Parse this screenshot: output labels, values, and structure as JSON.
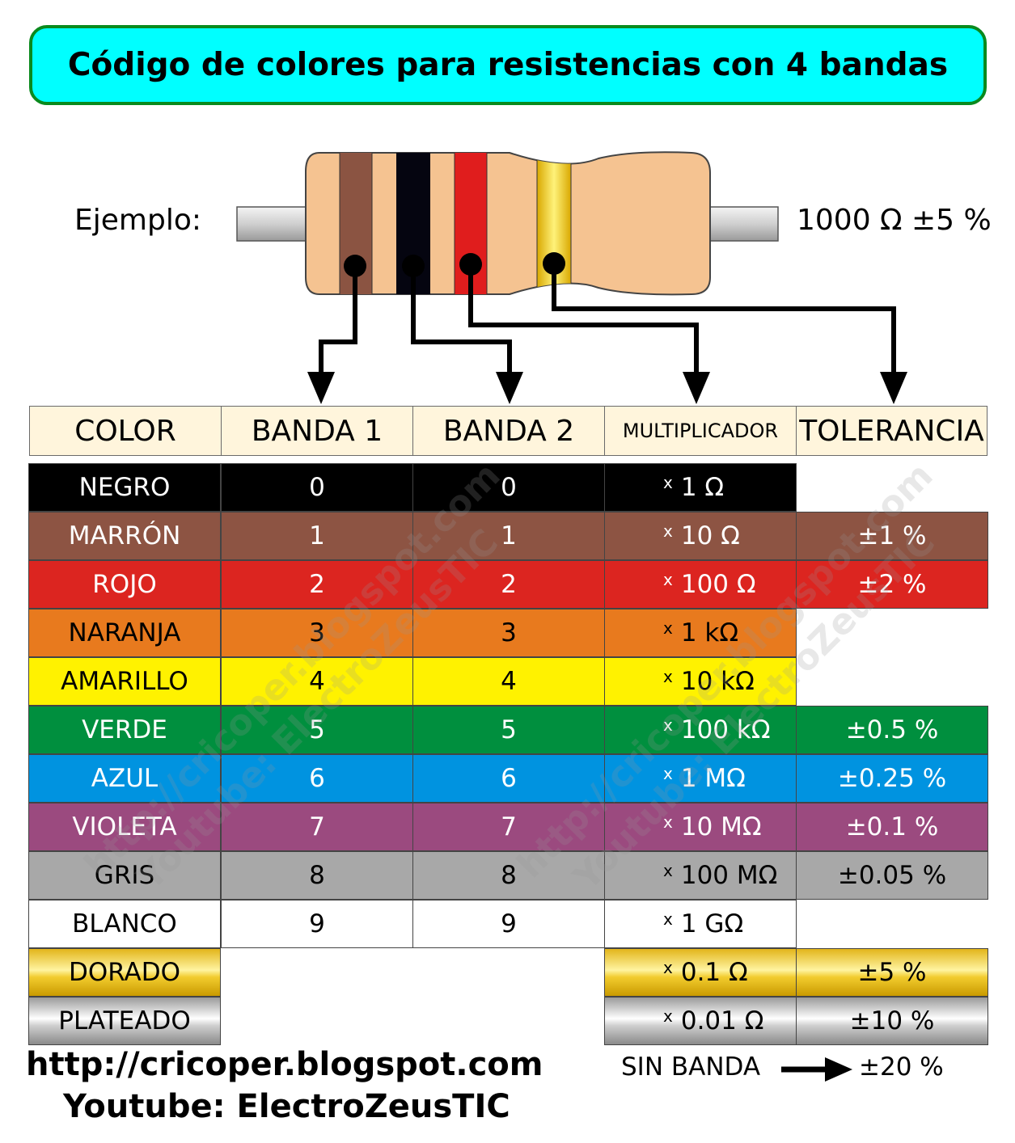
{
  "title": "Código de colores para resistencias con 4 bandas",
  "example": {
    "label": "Ejemplo:",
    "value": "1000 Ω ±5 %",
    "bands": [
      "#8b5442",
      "#050510",
      "#e01d1d",
      "#f2c200"
    ]
  },
  "headers": {
    "color": "COLOR",
    "band1": "BANDA 1",
    "band2": "BANDA 2",
    "multiplier": "MULTIPLICADOR",
    "tolerance": "TOLERANCIA"
  },
  "rows": [
    {
      "name": "NEGRO",
      "b1": "0",
      "b2": "0",
      "mult": "1 Ω",
      "tol": "",
      "bg": "#000000",
      "fg": "#ffffff"
    },
    {
      "name": "MARRÓN",
      "b1": "1",
      "b2": "1",
      "mult": "10 Ω",
      "tol": "±1 %",
      "bg": "#8d5443",
      "fg": "#ffffff"
    },
    {
      "name": "ROJO",
      "b1": "2",
      "b2": "2",
      "mult": "100 Ω",
      "tol": "±2 %",
      "bg": "#dc2520",
      "fg": "#ffffff"
    },
    {
      "name": "NARANJA",
      "b1": "3",
      "b2": "3",
      "mult": "1 kΩ",
      "tol": "",
      "bg": "#e87a1e",
      "fg": "#000000"
    },
    {
      "name": "AMARILLO",
      "b1": "4",
      "b2": "4",
      "mult": "10 kΩ",
      "tol": "",
      "bg": "#fff200",
      "fg": "#000000"
    },
    {
      "name": "VERDE",
      "b1": "5",
      "b2": "5",
      "mult": "100 kΩ",
      "tol": "±0.5 %",
      "bg": "#008f3e",
      "fg": "#ffffff"
    },
    {
      "name": "AZUL",
      "b1": "6",
      "b2": "6",
      "mult": "1 MΩ",
      "tol": "±0.25 %",
      "bg": "#0093e0",
      "fg": "#ffffff"
    },
    {
      "name": "VIOLETA",
      "b1": "7",
      "b2": "7",
      "mult": "10 MΩ",
      "tol": "±0.1 %",
      "bg": "#9b4a7f",
      "fg": "#ffffff"
    },
    {
      "name": "GRIS",
      "b1": "8",
      "b2": "8",
      "mult": "100 MΩ",
      "tol": "±0.05 %",
      "bg": "#a8a8a8",
      "fg": "#000000"
    },
    {
      "name": "BLANCO",
      "b1": "9",
      "b2": "9",
      "mult": "1 GΩ",
      "tol": "",
      "bg": "#ffffff",
      "fg": "#000000"
    },
    {
      "name": "DORADO",
      "b1": "",
      "b2": "",
      "mult": "0.1 Ω",
      "tol": "±5 %",
      "bg": "gold",
      "fg": "#000000"
    },
    {
      "name": "PLATEADO",
      "b1": "",
      "b2": "",
      "mult": "0.01 Ω",
      "tol": "±10 %",
      "bg": "silver",
      "fg": "#000000"
    }
  ],
  "multiplier_prefix": "x",
  "no_band": {
    "label": "SIN BANDA",
    "value": "±20 %"
  },
  "footer": {
    "blog": "http://cricoper.blogspot.com",
    "youtube": "Youtube: ElectroZeusTIC"
  },
  "watermark": {
    "blog": "http://cricoper.blogspot.com",
    "youtube": "Youtube: ElectroZeusTIC"
  }
}
